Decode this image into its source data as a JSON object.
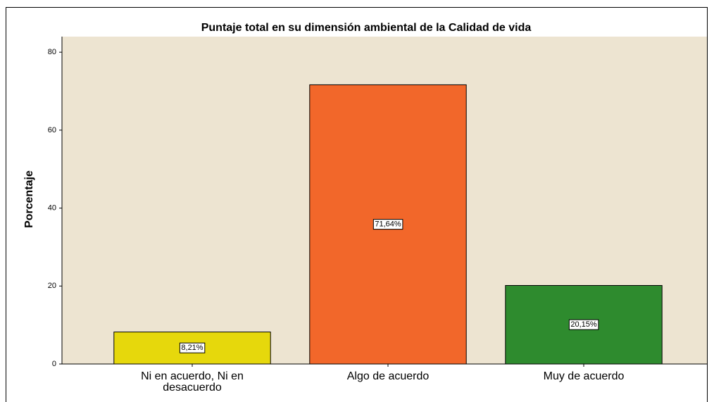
{
  "chart_data": {
    "type": "bar",
    "title": "Puntaje total en su dimensión ambiental de la Calidad de vida",
    "y_label": "Porcentaje",
    "categories": [
      "Ni en acuerdo, Ni en desacuerdo",
      "Algo de acuerdo",
      "Muy de acuerdo"
    ],
    "values": [
      8.21,
      71.64,
      20.15
    ],
    "value_labels": [
      "8,21%",
      "71,64%",
      "20,15%"
    ],
    "colors": [
      "#e6d80c",
      "#f2672a",
      "#2e8b2e"
    ],
    "ylim": [
      0,
      84
    ],
    "yticks": [
      0,
      20,
      40,
      60,
      80
    ]
  }
}
